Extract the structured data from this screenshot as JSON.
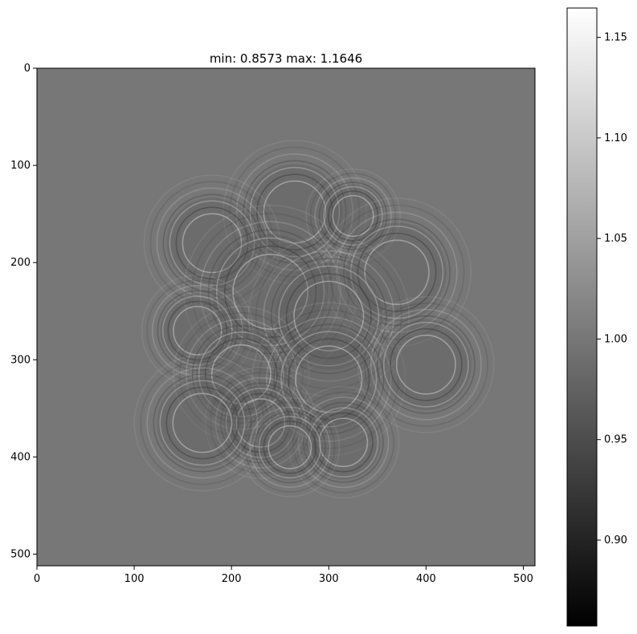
{
  "chart_data": {
    "type": "heatmap",
    "title": "min: 0.8573 max: 1.1646",
    "colormap": "gray",
    "xlim": [
      0,
      512
    ],
    "ylim": [
      512,
      0
    ],
    "x_ticks": [
      0,
      100,
      200,
      300,
      400,
      500
    ],
    "y_ticks": [
      0,
      100,
      200,
      300,
      400,
      500
    ],
    "colorbar": {
      "min": 0.8573,
      "max": 1.1646,
      "ticks": [
        0.9,
        0.95,
        1.0,
        1.05,
        1.1,
        1.15
      ],
      "tick_labels": [
        "0.90",
        "0.95",
        "1.00",
        "1.05",
        "1.10",
        "1.15"
      ]
    },
    "background_value": 1.0,
    "rings": [
      {
        "cx": 265,
        "cy": 148,
        "r": 58
      },
      {
        "cx": 325,
        "cy": 152,
        "r": 38
      },
      {
        "cx": 180,
        "cy": 180,
        "r": 55
      },
      {
        "cx": 370,
        "cy": 210,
        "r": 60
      },
      {
        "cx": 240,
        "cy": 230,
        "r": 70
      },
      {
        "cx": 300,
        "cy": 255,
        "r": 65
      },
      {
        "cx": 165,
        "cy": 270,
        "r": 45
      },
      {
        "cx": 210,
        "cy": 315,
        "r": 55
      },
      {
        "cx": 300,
        "cy": 320,
        "r": 62
      },
      {
        "cx": 400,
        "cy": 305,
        "r": 55
      },
      {
        "cx": 230,
        "cy": 365,
        "r": 45
      },
      {
        "cx": 170,
        "cy": 365,
        "r": 55
      },
      {
        "cx": 315,
        "cy": 385,
        "r": 45
      },
      {
        "cx": 260,
        "cy": 390,
        "r": 40
      }
    ]
  }
}
